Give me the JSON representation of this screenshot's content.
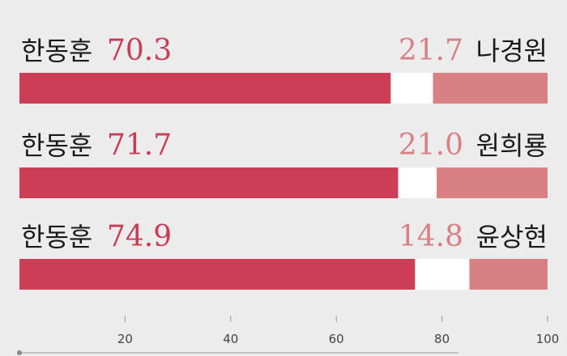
{
  "chart_data": {
    "type": "bar",
    "stacked": true,
    "orientation": "horizontal",
    "xlim": [
      0,
      100
    ],
    "ticks": [
      "20",
      "40",
      "60",
      "80",
      "100"
    ],
    "grid": false,
    "rows": [
      {
        "left_name": "한동훈",
        "left_value": 70.3,
        "left_label": "70.3",
        "right_name": "나경원",
        "right_value": 21.7,
        "right_label": "21.7"
      },
      {
        "left_name": "한동훈",
        "left_value": 71.7,
        "left_label": "71.7",
        "right_name": "원희룡",
        "right_value": 21.0,
        "right_label": "21.0"
      },
      {
        "left_name": "한동훈",
        "left_value": 74.9,
        "left_label": "74.9",
        "right_name": "윤상현",
        "right_value": 14.8,
        "right_label": "14.8"
      }
    ],
    "colors": {
      "left_bar": "#cc3d56",
      "right_bar": "#d98084",
      "gap": "#ffffff",
      "name_text": "#1a1a1a",
      "left_value_text": "#c93c54",
      "right_value_text": "#d98084",
      "axis": "#999999",
      "tick_text": "#444444"
    }
  }
}
